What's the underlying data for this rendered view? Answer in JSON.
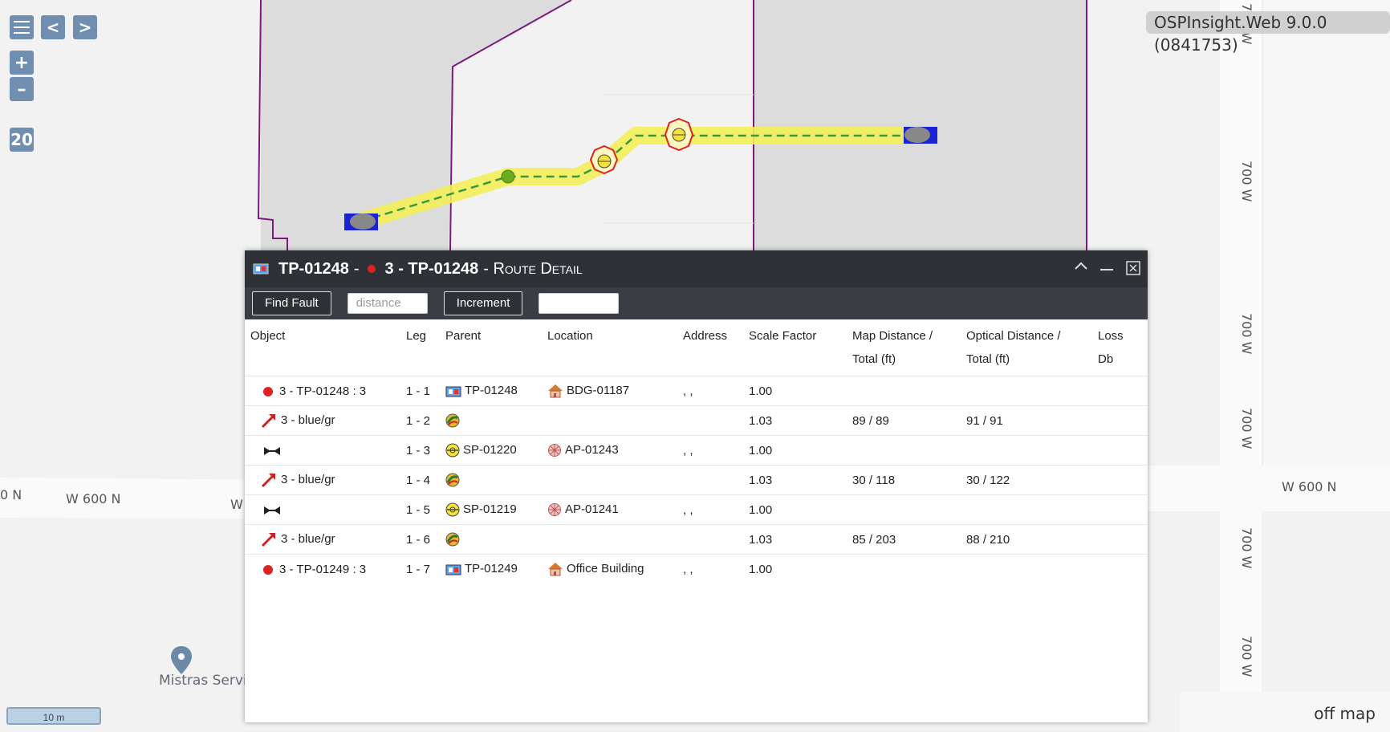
{
  "version_label": "OSPInsight.Web 9.0.0 (0841753)",
  "map": {
    "zoom_level": "20",
    "scale_label": "10 m",
    "off_map_label": "off map",
    "poi_label": "Mistras Servic",
    "road_labels": {
      "w600n_left": "W 600 N",
      "w600n_right": "W 600 N",
      "n_edge": "0 N",
      "w_trunc": "W",
      "v700w": "700 W"
    },
    "colors": {
      "route_highlight": "#f3ee5a",
      "route_line": "#3a9a3a",
      "boundary": "#7d1a7d"
    }
  },
  "controls": {
    "menu_icon": "hamburger-icon",
    "back_label": "<",
    "forward_label": ">",
    "zoom_in_label": "+",
    "zoom_out_label": "–"
  },
  "dialog": {
    "title_primary": "TP-01248",
    "title_separator": "-",
    "title_secondary": "3 - TP-01248",
    "title_suffix": "- Route Detail",
    "toolbar": {
      "find_fault_label": "Find Fault",
      "distance_placeholder": "distance",
      "increment_label": "Increment",
      "increment_value": ""
    },
    "columns": [
      "Object",
      "Leg",
      "Parent",
      "Location",
      "Address",
      "Scale Factor",
      "Map Distance / Total (ft)",
      "Optical Distance / Total (ft)",
      "Loss Db"
    ],
    "rows": [
      {
        "object_icon": "red-dot-icon",
        "object": "3 - TP-01248 : 3",
        "leg": "1 - 1",
        "parent_icon": "terminal-panel-icon",
        "parent": "TP-01248",
        "location_icon": "building-icon",
        "location": "BDG-01187",
        "address": ", ,",
        "scale": "1.00",
        "map_dist": "",
        "opt_dist": "",
        "loss": ""
      },
      {
        "object_icon": "cable-arrow-icon",
        "object": "3 - blue/gr",
        "leg": "1 - 2",
        "parent_icon": "cable-icon",
        "parent": "",
        "location_icon": "",
        "location": "",
        "address": "",
        "scale": "1.03",
        "map_dist": "89 / 89",
        "opt_dist": "91 / 91",
        "loss": ""
      },
      {
        "object_icon": "splice-icon",
        "object": "",
        "leg": "1 - 3",
        "parent_icon": "splice-point-icon",
        "parent": "SP-01220",
        "location_icon": "access-point-icon",
        "location": "AP-01243",
        "address": ", ,",
        "scale": "1.00",
        "map_dist": "",
        "opt_dist": "",
        "loss": ""
      },
      {
        "object_icon": "cable-arrow-icon",
        "object": "3 - blue/gr",
        "leg": "1 - 4",
        "parent_icon": "cable-icon",
        "parent": "",
        "location_icon": "",
        "location": "",
        "address": "",
        "scale": "1.03",
        "map_dist": "30 / 118",
        "opt_dist": "30 / 122",
        "loss": ""
      },
      {
        "object_icon": "splice-icon",
        "object": "",
        "leg": "1 - 5",
        "parent_icon": "splice-point-icon",
        "parent": "SP-01219",
        "location_icon": "access-point-icon",
        "location": "AP-01241",
        "address": ", ,",
        "scale": "1.00",
        "map_dist": "",
        "opt_dist": "",
        "loss": ""
      },
      {
        "object_icon": "cable-arrow-icon",
        "object": "3 - blue/gr",
        "leg": "1 - 6",
        "parent_icon": "cable-icon",
        "parent": "",
        "location_icon": "",
        "location": "",
        "address": "",
        "scale": "1.03",
        "map_dist": "85 / 203",
        "opt_dist": "88 / 210",
        "loss": ""
      },
      {
        "object_icon": "red-dot-icon",
        "object": "3 - TP-01249 : 3",
        "leg": "1 - 7",
        "parent_icon": "terminal-panel-icon",
        "parent": "TP-01249",
        "location_icon": "building-icon",
        "location": "Office Building",
        "address": ", ,",
        "scale": "1.00",
        "map_dist": "",
        "opt_dist": "",
        "loss": ""
      }
    ]
  }
}
